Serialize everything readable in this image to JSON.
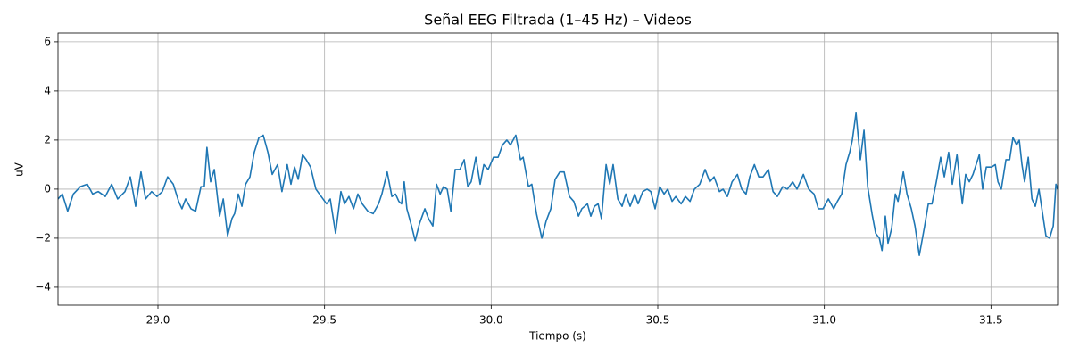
{
  "chart_data": {
    "type": "line",
    "title": "Señal EEG Filtrada (1–45 Hz) – Videos",
    "xlabel": "Tiempo (s)",
    "ylabel": "uV",
    "color": "#1f77b4",
    "grid": true,
    "xlim": [
      28.7,
      31.7
    ],
    "ylim": [
      -4.73,
      6.36
    ],
    "xticks": [
      {
        "value": 29,
        "label": "29.0"
      },
      {
        "value": 29.5,
        "label": "29.5"
      },
      {
        "value": 30,
        "label": "30.0"
      },
      {
        "value": 30.5,
        "label": "30.5"
      },
      {
        "value": 31,
        "label": "31.0"
      },
      {
        "value": 31.5,
        "label": "31.5"
      }
    ],
    "yticks": [
      {
        "value": -4,
        "label": "−4"
      },
      {
        "value": -2,
        "label": "−2"
      },
      0,
      2,
      4,
      6
    ],
    "x": [
      28.7,
      28.713,
      28.729,
      28.746,
      28.767,
      28.788,
      28.804,
      28.821,
      28.842,
      28.861,
      28.879,
      28.901,
      28.917,
      28.933,
      28.949,
      28.963,
      28.981,
      28.997,
      29.013,
      29.029,
      29.046,
      29.062,
      29.072,
      29.083,
      29.099,
      29.113,
      29.129,
      29.139,
      29.147,
      29.158,
      29.169,
      29.185,
      29.196,
      29.209,
      29.222,
      29.23,
      29.241,
      29.252,
      29.263,
      29.276,
      29.289,
      29.303,
      29.316,
      29.33,
      29.343,
      29.359,
      29.372,
      29.388,
      29.399,
      29.41,
      29.421,
      29.434,
      29.445,
      29.458,
      29.474,
      29.49,
      29.506,
      29.517,
      29.533,
      29.549,
      29.56,
      29.573,
      29.587,
      29.6,
      29.613,
      29.63,
      29.646,
      29.662,
      29.672,
      29.688,
      29.702,
      29.713,
      29.723,
      29.731,
      29.739,
      29.747,
      29.761,
      29.772,
      29.785,
      29.801,
      29.812,
      29.825,
      29.836,
      29.847,
      29.857,
      29.868,
      29.879,
      29.892,
      29.906,
      29.919,
      29.93,
      29.94,
      29.954,
      29.967,
      29.978,
      29.991,
      30.007,
      30.021,
      30.034,
      30.047,
      30.058,
      30.074,
      30.088,
      30.096,
      30.112,
      30.122,
      30.136,
      30.152,
      30.165,
      30.179,
      30.192,
      30.206,
      30.219,
      30.235,
      30.248,
      30.262,
      30.272,
      30.289,
      30.299,
      30.31,
      30.321,
      30.331,
      30.345,
      30.356,
      30.366,
      30.38,
      30.393,
      30.404,
      30.417,
      30.431,
      30.441,
      30.455,
      30.468,
      30.479,
      30.492,
      30.506,
      30.519,
      30.53,
      30.543,
      30.554,
      30.57,
      30.583,
      30.597,
      30.61,
      30.626,
      30.642,
      30.656,
      30.669,
      30.685,
      30.696,
      30.709,
      30.723,
      30.739,
      30.752,
      30.765,
      30.776,
      30.79,
      30.803,
      30.816,
      30.832,
      30.846,
      30.859,
      30.875,
      30.889,
      30.905,
      30.918,
      30.937,
      30.953,
      30.969,
      30.982,
      30.996,
      31.012,
      31.028,
      31.039,
      31.052,
      31.065,
      31.076,
      31.084,
      31.095,
      31.108,
      31.119,
      31.13,
      31.143,
      31.154,
      31.165,
      31.173,
      31.183,
      31.191,
      31.202,
      31.213,
      31.221,
      31.237,
      31.248,
      31.261,
      31.272,
      31.285,
      31.301,
      31.312,
      31.323,
      31.336,
      31.349,
      31.36,
      31.373,
      31.384,
      31.398,
      31.414,
      31.424,
      31.435,
      31.446,
      31.465,
      31.475,
      31.486,
      31.502,
      31.513,
      31.521,
      31.531,
      31.545,
      31.556,
      31.566,
      31.577,
      31.585,
      31.593,
      31.601,
      31.612,
      31.623,
      31.633,
      31.644,
      31.655,
      31.665,
      31.676,
      31.687,
      31.695,
      31.7
    ],
    "values": [
      -0.4,
      -0.2,
      -0.9,
      -0.2,
      0.1,
      0.2,
      -0.2,
      -0.1,
      -0.3,
      0.2,
      -0.4,
      -0.1,
      0.5,
      -0.7,
      0.7,
      -0.4,
      -0.1,
      -0.3,
      -0.1,
      0.5,
      0.2,
      -0.5,
      -0.8,
      -0.4,
      -0.8,
      -0.9,
      0.1,
      0.1,
      1.7,
      0.3,
      0.8,
      -1.1,
      -0.4,
      -1.9,
      -1.2,
      -1.0,
      -0.2,
      -0.7,
      0.2,
      0.5,
      1.5,
      2.1,
      2.2,
      1.5,
      0.6,
      1.0,
      -0.1,
      1.0,
      0.2,
      0.9,
      0.4,
      1.4,
      1.2,
      0.9,
      0.0,
      -0.3,
      -0.6,
      -0.4,
      -1.8,
      -0.1,
      -0.6,
      -0.3,
      -0.8,
      -0.2,
      -0.6,
      -0.9,
      -1.0,
      -0.6,
      -0.2,
      0.7,
      -0.3,
      -0.2,
      -0.5,
      -0.6,
      0.3,
      -0.8,
      -1.5,
      -2.1,
      -1.4,
      -0.8,
      -1.2,
      -1.5,
      0.2,
      -0.2,
      0.1,
      0.0,
      -0.9,
      0.8,
      0.8,
      1.2,
      0.1,
      0.3,
      1.3,
      0.2,
      1.0,
      0.8,
      1.3,
      1.3,
      1.8,
      2.0,
      1.8,
      2.2,
      1.2,
      1.3,
      0.1,
      0.2,
      -1.0,
      -2.0,
      -1.3,
      -0.8,
      0.4,
      0.7,
      0.7,
      -0.3,
      -0.5,
      -1.1,
      -0.8,
      -0.6,
      -1.1,
      -0.7,
      -0.6,
      -1.2,
      1.0,
      0.2,
      1.0,
      -0.4,
      -0.7,
      -0.2,
      -0.7,
      -0.2,
      -0.6,
      -0.1,
      0.0,
      -0.1,
      -0.8,
      0.1,
      -0.2,
      0.0,
      -0.5,
      -0.3,
      -0.6,
      -0.3,
      -0.5,
      0.0,
      0.2,
      0.8,
      0.3,
      0.5,
      -0.1,
      0.0,
      -0.3,
      0.3,
      0.6,
      0.0,
      -0.2,
      0.5,
      1.0,
      0.5,
      0.5,
      0.8,
      -0.1,
      -0.3,
      0.1,
      0.0,
      0.3,
      0.0,
      0.6,
      0.0,
      -0.2,
      -0.8,
      -0.8,
      -0.4,
      -0.8,
      -0.5,
      -0.2,
      1.0,
      1.5,
      2.0,
      3.1,
      1.2,
      2.4,
      0.1,
      -1.0,
      -1.8,
      -2.0,
      -2.5,
      -1.1,
      -2.2,
      -1.6,
      -0.2,
      -0.5,
      0.7,
      -0.2,
      -0.8,
      -1.5,
      -2.7,
      -1.5,
      -0.6,
      -0.6,
      0.3,
      1.3,
      0.5,
      1.5,
      0.2,
      1.4,
      -0.6,
      0.6,
      0.3,
      0.6,
      1.4,
      0.0,
      0.9,
      0.9,
      1.0,
      0.3,
      0.0,
      1.2,
      1.2,
      2.1,
      1.8,
      2.0,
      1.0,
      0.3,
      1.3,
      -0.4,
      -0.7,
      0.0,
      -1.0,
      -1.9,
      -2.0,
      -1.5,
      0.2,
      0.0
    ]
  }
}
